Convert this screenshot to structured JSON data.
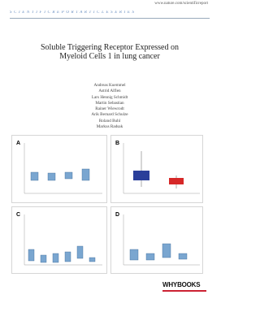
{
  "header": {
    "url": "www.nature.com/scientificreport",
    "series": "SCIENTIFICREPORTARTICLESERIES"
  },
  "title": "Soluble Triggering Receptor Expressed on Myeloid Cells 1 in lung cancer",
  "authors": [
    "Andreas Kuemmel",
    "Astrid Alflen",
    "Lars Hennig Schmidt",
    "Martin Sebastian",
    "Rainer Wiewrodt",
    "Arik Bernard Schulze",
    "Roland Buhl",
    "Markus Radsak"
  ],
  "figure": {
    "panels": [
      "A",
      "B",
      "C",
      "D"
    ]
  },
  "publisher": {
    "name": "WHYBOOKS"
  }
}
